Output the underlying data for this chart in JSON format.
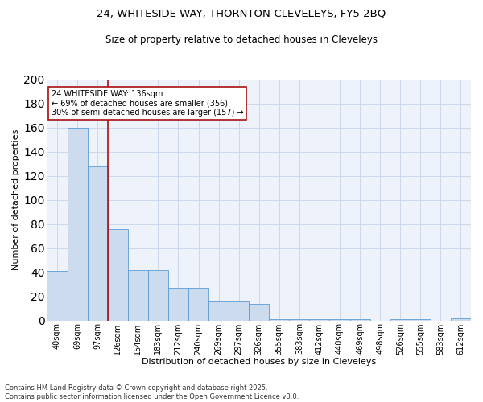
{
  "title_line1": "24, WHITESIDE WAY, THORNTON-CLEVELEYS, FY5 2BQ",
  "title_line2": "Size of property relative to detached houses in Cleveleys",
  "xlabel": "Distribution of detached houses by size in Cleveleys",
  "ylabel": "Number of detached properties",
  "categories": [
    "40sqm",
    "69sqm",
    "97sqm",
    "126sqm",
    "154sqm",
    "183sqm",
    "212sqm",
    "240sqm",
    "269sqm",
    "297sqm",
    "326sqm",
    "355sqm",
    "383sqm",
    "412sqm",
    "440sqm",
    "469sqm",
    "498sqm",
    "526sqm",
    "555sqm",
    "583sqm",
    "612sqm"
  ],
  "values": [
    41,
    160,
    128,
    76,
    42,
    42,
    27,
    27,
    16,
    16,
    14,
    1,
    1,
    1,
    1,
    1,
    0,
    1,
    1,
    0,
    2
  ],
  "bar_color": "#ccdcee",
  "bar_edge_color": "#5b9bd5",
  "ref_line_color": "#aa1111",
  "annotation_text": "24 WHITESIDE WAY: 136sqm\n← 69% of detached houses are smaller (356)\n30% of semi-detached houses are larger (157) →",
  "annotation_box_color": "#ffffff",
  "annotation_box_edge": "#aa1111",
  "ylim": [
    0,
    200
  ],
  "yticks": [
    0,
    20,
    40,
    60,
    80,
    100,
    120,
    140,
    160,
    180,
    200
  ],
  "footer_line1": "Contains HM Land Registry data © Crown copyright and database right 2025.",
  "footer_line2": "Contains public sector information licensed under the Open Government Licence v3.0.",
  "grid_color": "#c8d4e8",
  "bg_color": "#edf2fb",
  "fig_width": 6.0,
  "fig_height": 5.0,
  "dpi": 100
}
